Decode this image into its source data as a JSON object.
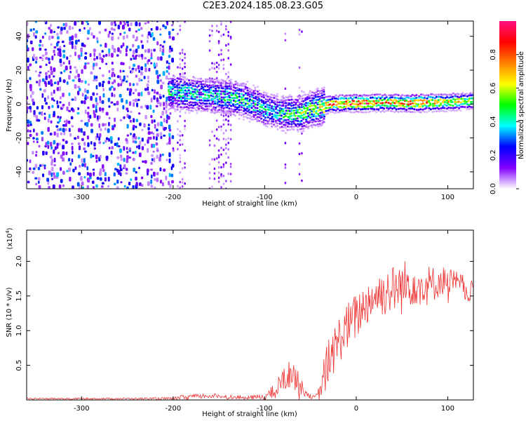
{
  "title": "C2E3.2024.185.08.23.G05",
  "chart_data": [
    {
      "type": "heatmap",
      "xlabel": "Height of straight line (km)",
      "ylabel": "Frequency (Hz)",
      "xlim": [
        -360,
        128
      ],
      "ylim": [
        -50,
        49
      ],
      "xticks": [
        -300,
        -200,
        -100,
        0,
        100
      ],
      "yticks": [
        -40,
        -20,
        0,
        20,
        40
      ],
      "colorbar": {
        "label": "Normalized spectral amplitude",
        "range": [
          0,
          1
        ],
        "ticks": [
          "0.0",
          "0.2",
          "0.4",
          "0.6",
          "0.8"
        ],
        "tick_values": [
          0,
          0.2,
          0.4,
          0.6,
          0.8
        ],
        "colors": [
          "#ffffff",
          "#8000ff",
          "#0000ff",
          "#00ffff",
          "#00ff00",
          "#ffff00",
          "#ff8000",
          "#ff0000",
          "#ff1080"
        ]
      },
      "ridge": {
        "x": [
          -205,
          -180,
          -160,
          -140,
          -120,
          -100,
          -80,
          -60,
          -50,
          -40,
          -30,
          -10,
          10,
          30,
          60,
          90,
          128
        ],
        "frequency": [
          7,
          6,
          5,
          4,
          2,
          -3,
          -6,
          -5,
          -3,
          -2,
          0,
          0.5,
          0.5,
          1,
          0.5,
          1,
          2
        ],
        "amplitude": [
          0.45,
          0.45,
          0.4,
          0.45,
          0.5,
          0.4,
          0.45,
          0.55,
          0.55,
          0.65,
          0.8,
          0.85,
          0.85,
          0.75,
          0.85,
          0.7,
          0.6
        ]
      }
    },
    {
      "type": "line",
      "xlabel": "Height of straight line (km)",
      "ylabel": "SNR (10 * v/v)",
      "y_scale_label": "(x10",
      "y_scale_exp": "4",
      "y_scale_close": ")",
      "xlim": [
        -360,
        128
      ],
      "ylim": [
        0,
        2.45
      ],
      "xticks": [
        -300,
        -200,
        -100,
        0,
        100
      ],
      "yticks": [
        "0.5",
        "1.0",
        "1.5",
        "2.0"
      ],
      "ytick_values": [
        0.5,
        1.0,
        1.5,
        2.0
      ],
      "line_color": "#ee3333",
      "series": [
        {
          "name": "SNR",
          "x": [
            -360,
            -300,
            -250,
            -200,
            -190,
            -180,
            -160,
            -140,
            -120,
            -100,
            -90,
            -80,
            -70,
            -60,
            -50,
            -45,
            -40,
            -35,
            -30,
            -20,
            -10,
            0,
            10,
            20,
            30,
            40,
            50,
            60,
            70,
            80,
            90,
            100,
            110,
            120,
            128
          ],
          "mean": [
            0.02,
            0.02,
            0.02,
            0.02,
            0.04,
            0.05,
            0.06,
            0.05,
            0.03,
            0.05,
            0.12,
            0.28,
            0.4,
            0.18,
            0.05,
            0.03,
            0.1,
            0.35,
            0.55,
            0.85,
            1.05,
            1.2,
            1.38,
            1.5,
            1.55,
            1.6,
            1.62,
            1.7,
            1.68,
            1.65,
            1.7,
            1.75,
            1.68,
            1.6,
            1.55
          ],
          "spread": [
            0.01,
            0.01,
            0.01,
            0.02,
            0.03,
            0.03,
            0.04,
            0.03,
            0.02,
            0.05,
            0.1,
            0.18,
            0.22,
            0.12,
            0.03,
            0.03,
            0.12,
            0.3,
            0.35,
            0.35,
            0.35,
            0.35,
            0.32,
            0.32,
            0.35,
            0.35,
            0.4,
            0.35,
            0.3,
            0.3,
            0.22,
            0.2,
            0.18,
            0.2,
            0.15
          ]
        }
      ]
    }
  ]
}
